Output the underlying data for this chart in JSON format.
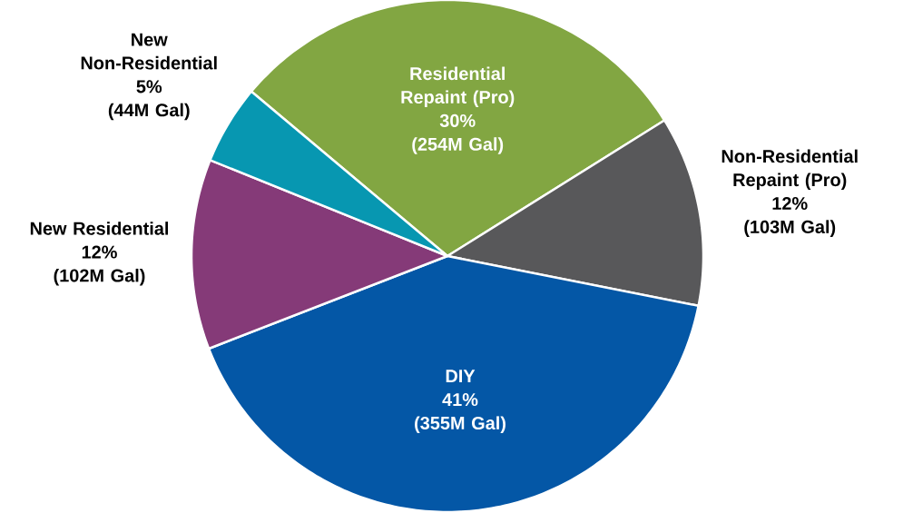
{
  "chart_data": {
    "type": "pie",
    "categories": [
      "Residential Repaint (Pro)",
      "Non-Residential Repaint (Pro)",
      "DIY",
      "New Residential",
      "New Non-Residential"
    ],
    "values": [
      30,
      12,
      41,
      12,
      5
    ],
    "colors": [
      "#82a642",
      "#58585a",
      "#0457a6",
      "#853a78",
      "#0797b1"
    ],
    "value_labels": [
      "30%",
      "12%",
      "41%",
      "12%",
      "5%"
    ],
    "annotations": [
      "(254M Gal)",
      "(103M Gal)",
      "(355M Gal)",
      "(102M Gal)",
      "(44M Gal)"
    ]
  }
}
